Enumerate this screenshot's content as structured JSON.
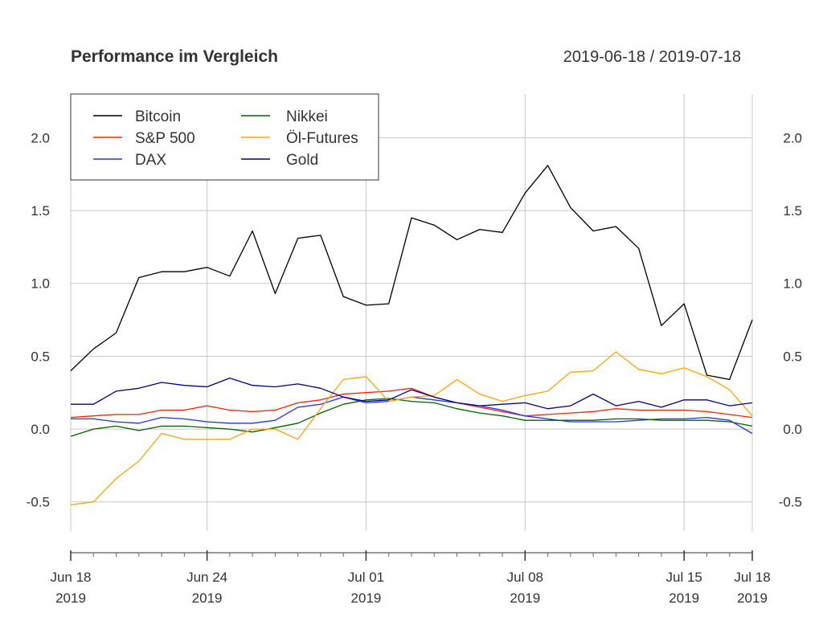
{
  "chart_data": {
    "type": "line",
    "title": "Performance im Vergleich",
    "date_range": "2019-06-18 / 2019-07-18",
    "xlabel": "",
    "ylabel": "",
    "ylim": [
      -0.7,
      2.3
    ],
    "xlim": [
      "2019-06-18",
      "2019-07-18"
    ],
    "grid": true,
    "legend_position": "top-left",
    "y_ticks": [
      {
        "value": -0.5,
        "label": "-0.5"
      },
      {
        "value": 0.0,
        "label": "0.0"
      },
      {
        "value": 0.5,
        "label": "0.5"
      },
      {
        "value": 1.0,
        "label": "1.0"
      },
      {
        "value": 1.5,
        "label": "1.5"
      },
      {
        "value": 2.0,
        "label": "2.0"
      }
    ],
    "x_ticks": [
      {
        "date": "2019-06-18",
        "line1": "Jun 18",
        "line2": "2019"
      },
      {
        "date": "2019-06-24",
        "line1": "Jun 24",
        "line2": "2019"
      },
      {
        "date": "2019-07-01",
        "line1": "Jul 01",
        "line2": "2019"
      },
      {
        "date": "2019-07-08",
        "line1": "Jul 08",
        "line2": "2019"
      },
      {
        "date": "2019-07-15",
        "line1": "Jul 15",
        "line2": "2019"
      },
      {
        "date": "2019-07-18",
        "line1": "Jul 18",
        "line2": "2019"
      }
    ],
    "x": [
      "2019-06-18",
      "2019-06-19",
      "2019-06-20",
      "2019-06-21",
      "2019-06-22",
      "2019-06-23",
      "2019-06-24",
      "2019-06-25",
      "2019-06-26",
      "2019-06-27",
      "2019-06-28",
      "2019-06-29",
      "2019-06-30",
      "2019-07-01",
      "2019-07-02",
      "2019-07-03",
      "2019-07-04",
      "2019-07-05",
      "2019-07-06",
      "2019-07-07",
      "2019-07-08",
      "2019-07-09",
      "2019-07-10",
      "2019-07-11",
      "2019-07-12",
      "2019-07-13",
      "2019-07-14",
      "2019-07-15",
      "2019-07-16",
      "2019-07-17",
      "2019-07-18"
    ],
    "series": [
      {
        "name": "Bitcoin",
        "color": "#000000",
        "values": [
          0.4,
          0.55,
          0.66,
          1.04,
          1.08,
          1.08,
          1.11,
          1.05,
          1.36,
          0.93,
          1.31,
          1.33,
          0.91,
          0.85,
          0.86,
          1.45,
          1.4,
          1.3,
          1.37,
          1.35,
          1.62,
          1.81,
          1.52,
          1.36,
          1.39,
          1.24,
          0.71,
          0.86,
          0.37,
          0.34,
          0.75
        ]
      },
      {
        "name": "S&P 500",
        "color": "#ff2200",
        "values": [
          0.08,
          0.09,
          0.1,
          0.1,
          0.13,
          0.13,
          0.16,
          0.13,
          0.12,
          0.13,
          0.18,
          0.2,
          0.24,
          0.25,
          0.26,
          0.28,
          0.22,
          0.18,
          0.15,
          0.12,
          0.09,
          0.1,
          0.11,
          0.12,
          0.14,
          0.13,
          0.13,
          0.13,
          0.12,
          0.1,
          0.08
        ]
      },
      {
        "name": "DAX",
        "color": "#2233ff",
        "values": [
          0.07,
          0.07,
          0.05,
          0.04,
          0.08,
          0.07,
          0.05,
          0.04,
          0.04,
          0.06,
          0.15,
          0.17,
          0.22,
          0.18,
          0.19,
          0.22,
          0.2,
          0.18,
          0.16,
          0.13,
          0.09,
          0.07,
          0.05,
          0.05,
          0.05,
          0.06,
          0.07,
          0.07,
          0.08,
          0.06,
          -0.03
        ]
      },
      {
        "name": "Nikkei",
        "color": "#006400",
        "values": [
          -0.05,
          0.0,
          0.02,
          -0.01,
          0.02,
          0.02,
          0.01,
          0.0,
          -0.02,
          0.01,
          0.04,
          0.11,
          0.17,
          0.2,
          0.21,
          0.19,
          0.18,
          0.14,
          0.11,
          0.09,
          0.06,
          0.06,
          0.06,
          0.06,
          0.07,
          0.07,
          0.06,
          0.06,
          0.06,
          0.05,
          0.02
        ]
      },
      {
        "name": "Öl-Futures",
        "color": "#ffa500",
        "values": [
          -0.52,
          -0.5,
          -0.34,
          -0.22,
          -0.03,
          -0.07,
          -0.07,
          -0.07,
          0.0,
          0.0,
          -0.07,
          0.14,
          0.34,
          0.36,
          0.19,
          0.22,
          0.23,
          0.34,
          0.24,
          0.19,
          0.23,
          0.26,
          0.39,
          0.4,
          0.53,
          0.41,
          0.38,
          0.42,
          0.36,
          0.27,
          0.09
        ]
      },
      {
        "name": "Gold",
        "color": "#00008b",
        "values": [
          0.17,
          0.17,
          0.26,
          0.28,
          0.32,
          0.3,
          0.29,
          0.35,
          0.3,
          0.29,
          0.31,
          0.28,
          0.22,
          0.19,
          0.2,
          0.27,
          0.22,
          0.18,
          0.16,
          0.17,
          0.18,
          0.14,
          0.16,
          0.24,
          0.16,
          0.19,
          0.15,
          0.2,
          0.2,
          0.16,
          0.18
        ]
      }
    ]
  }
}
